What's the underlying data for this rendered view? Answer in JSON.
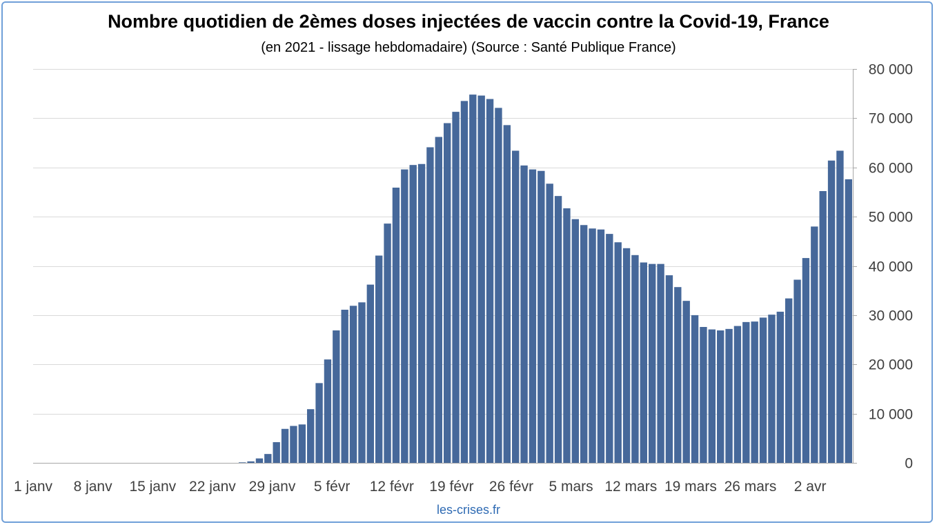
{
  "title": "Nombre quotidien de 2èmes doses injectées de vaccin contre la Covid-19, France",
  "subtitle": "(en 2021 - lissage hebdomadaire) (Source : Santé Publique France)",
  "source": "les-crises.fr",
  "colors": {
    "bar": "#46689a",
    "grid": "#d9d9d9",
    "frame": "#6f9fd8",
    "source_text": "#2e6ab3"
  },
  "chart_data": {
    "type": "bar",
    "title": "Nombre quotidien de 2èmes doses injectées de vaccin contre la Covid-19, France",
    "subtitle": "(en 2021 - lissage hebdomadaire) (Source : Santé Publique France)",
    "y_axis_position": "right",
    "ylim": [
      0,
      80000
    ],
    "y_ticks": [
      0,
      10000,
      20000,
      30000,
      40000,
      50000,
      60000,
      70000,
      80000
    ],
    "y_tick_labels": [
      "0",
      "10 000",
      "20 000",
      "30 000",
      "40 000",
      "50 000",
      "60 000",
      "70 000",
      "80 000"
    ],
    "x_tick_labels": [
      "1 janv",
      "8 janv",
      "15 janv",
      "22 janv",
      "29 janv",
      "5 févr",
      "12 févr",
      "19 févr",
      "26 févr",
      "5 mars",
      "12 mars",
      "19 mars",
      "26 mars",
      "2 avr"
    ],
    "x_start": "2021-01-01",
    "x_end": "2021-04-05",
    "grid": true,
    "series": [
      {
        "values": [
          0,
          0,
          0,
          0,
          0,
          0,
          0,
          0,
          0,
          0,
          0,
          0,
          0,
          0,
          0,
          0,
          0,
          0,
          0,
          0,
          0,
          0,
          0,
          0,
          100,
          300,
          900,
          1800,
          4200,
          6900,
          7500,
          7800,
          10900,
          16200,
          21000,
          26900,
          31100,
          31900,
          32600,
          36200,
          42100,
          48600,
          55900,
          59600,
          60500,
          60700,
          64100,
          66200,
          69000,
          71300,
          73500,
          74800,
          74600,
          73900,
          72100,
          68600,
          63400,
          60400,
          59600,
          59300,
          56700,
          54200,
          51700,
          49500,
          48300,
          47600,
          47400,
          46500,
          44800,
          43600,
          42200,
          40700,
          40400,
          40400,
          38100,
          35700,
          32900,
          30000,
          27600,
          27100,
          26900,
          27200,
          27800,
          28600,
          28700,
          29500,
          30100,
          30700,
          33400,
          37200,
          41600,
          48000,
          55200,
          61400,
          63400,
          57600
        ]
      }
    ]
  }
}
